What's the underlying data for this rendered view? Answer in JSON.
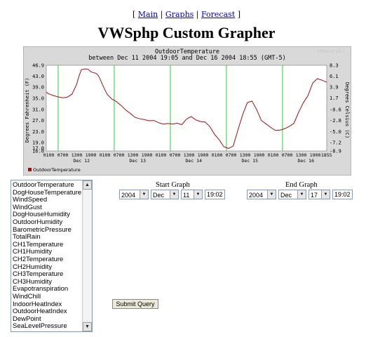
{
  "nav": {
    "open": "[",
    "main": "Main",
    "sep1": "|",
    "graphs": "Graphs",
    "sep2": "|",
    "forecast": "Forecast",
    "close": "]"
  },
  "page_title": "VWSphp Custom Grapher",
  "graph": {
    "title_line1": "OutdoorTemperature",
    "title_line2": "between Dec 11 2004 19:05 and Dec 16 2004 18:55 (GMT-5)",
    "watermark": "VWSphp v0.2",
    "ylabel_left": "Degrees Fahrenheit (F)",
    "ylabel_right": "Degrees Celsius (C)",
    "legend": "OutdoorTemperature",
    "colors": {
      "line": "#9a1111",
      "grid_day": "#2ecc40",
      "bg": "#ffffff",
      "frame": "#d9d9d9"
    }
  },
  "chart_data": {
    "type": "line",
    "title": "OutdoorTemperature between Dec 11 2004 19:05 and Dec 16 2004 18:55 (GMT-5)",
    "xlabel": "",
    "ylabel": "Degrees Fahrenheit (F)",
    "ylabel_right": "Degrees Celsius (C)",
    "ylim": [
      16.0,
      46.9
    ],
    "xlim": [
      0,
      120
    ],
    "y_ticks_left": [
      "46.9",
      "43.0",
      "39.0",
      "35.0",
      "31.0",
      "27.0",
      "23.0",
      "19.0",
      "17.0",
      "16.0"
    ],
    "y_tick_values_left": [
      46.9,
      43.0,
      39.0,
      35.0,
      31.0,
      27.0,
      23.0,
      19.0,
      17.0,
      16.0
    ],
    "y_ticks_right": [
      "8.3",
      "6.1",
      "3.9",
      "1.7",
      "-0.6",
      "-2.8",
      "-5.0",
      "-7.2",
      "-8.9"
    ],
    "y_tick_values_right": [
      8.3,
      6.1,
      3.9,
      1.7,
      -0.6,
      -2.8,
      -5.0,
      -7.2,
      -8.9
    ],
    "x_ticks": [
      {
        "x": 1.08,
        "top": "0100",
        "bottom": ""
      },
      {
        "x": 7.08,
        "top": "0700",
        "bottom": ""
      },
      {
        "x": 13.08,
        "top": "1300",
        "bottom": ""
      },
      {
        "x": 19.08,
        "top": "1900",
        "bottom": ""
      },
      {
        "x": 25.08,
        "top": "0100",
        "bottom": ""
      },
      {
        "x": 31.08,
        "top": "0700",
        "bottom": ""
      },
      {
        "x": 37.08,
        "top": "1300",
        "bottom": ""
      },
      {
        "x": 43.08,
        "top": "1900",
        "bottom": ""
      },
      {
        "x": 49.08,
        "top": "0100",
        "bottom": ""
      },
      {
        "x": 55.08,
        "top": "0700",
        "bottom": ""
      },
      {
        "x": 61.08,
        "top": "1300",
        "bottom": ""
      },
      {
        "x": 67.08,
        "top": "1900",
        "bottom": ""
      },
      {
        "x": 73.08,
        "top": "0100",
        "bottom": ""
      },
      {
        "x": 79.08,
        "top": "0700",
        "bottom": ""
      },
      {
        "x": 85.08,
        "top": "1300",
        "bottom": ""
      },
      {
        "x": 91.08,
        "top": "1900",
        "bottom": ""
      },
      {
        "x": 97.08,
        "top": "0100",
        "bottom": ""
      },
      {
        "x": 103.08,
        "top": "0700",
        "bottom": ""
      },
      {
        "x": 109.08,
        "top": "1300",
        "bottom": ""
      },
      {
        "x": 115.08,
        "top": "1900",
        "bottom": ""
      },
      {
        "x": 119.92,
        "top": "1855",
        "bottom": ""
      }
    ],
    "day_labels": [
      {
        "x": 15.08,
        "label": "Dec 12"
      },
      {
        "x": 39.08,
        "label": "Dec 13"
      },
      {
        "x": 63.08,
        "label": "Dec 14"
      },
      {
        "x": 87.08,
        "label": "Dec 15"
      },
      {
        "x": 111.08,
        "label": "Dec 16"
      }
    ],
    "day_lines_x": [
      5.08,
      29.08,
      53.08,
      77.08,
      101.08
    ],
    "series": [
      {
        "name": "OutdoorTemperature",
        "x": [
          0,
          1,
          3,
          5,
          7,
          9,
          11,
          13,
          14,
          15,
          16,
          17,
          18,
          19,
          20,
          21,
          22,
          23,
          24,
          25,
          26,
          28,
          30,
          32,
          34,
          36,
          38,
          40,
          42,
          44,
          46,
          48,
          50,
          52,
          54,
          56,
          58,
          59,
          60,
          62,
          64,
          66,
          68,
          70,
          72,
          74,
          76,
          78,
          80,
          82,
          84,
          86,
          88,
          90,
          92,
          94,
          96,
          98,
          100,
          102,
          104,
          106,
          108,
          110,
          112,
          114,
          116,
          118,
          120
        ],
        "values": [
          37.2,
          36.6,
          36.0,
          35.5,
          35.2,
          35.4,
          36.5,
          40.0,
          43.0,
          45.3,
          45.5,
          45.6,
          45.4,
          44.6,
          44.3,
          44.1,
          43.5,
          42.0,
          40.0,
          38.2,
          36.5,
          34.8,
          33.8,
          32.4,
          30.8,
          29.5,
          28.1,
          27.6,
          27.3,
          26.9,
          27.0,
          26.2,
          25.7,
          25.9,
          25.7,
          26.0,
          25.5,
          26.5,
          27.5,
          28.4,
          27.2,
          26.6,
          26.4,
          24.8,
          22.0,
          20.0,
          17.5,
          16.9,
          17.8,
          23.5,
          29.0,
          33.4,
          34.0,
          31.0,
          27.0,
          25.8,
          24.5,
          23.4,
          23.5,
          24.0,
          24.9,
          26.0,
          30.0,
          33.4,
          36.0,
          40.5,
          42.1,
          41.5,
          40.8
        ]
      }
    ],
    "grid": "vertical day lines",
    "legend_position": "bottom-left"
  },
  "list": {
    "items": [
      "OutdoorTemperature",
      "DogHouseTemperature",
      "WindSpeed",
      "WindGust",
      "DogHouseHumidity",
      "OutdoorHumidity",
      "BarometricPressure",
      "TotalRain",
      "CH1Temperature",
      "CH1Humidity",
      "CH2Temperature",
      "CH2Humidity",
      "CH3Temperature",
      "CH3Humidity",
      "Evapotranspiration",
      "WindChill",
      "IndoorHeatIndex",
      "OutdoorHeatIndex",
      "DewPoint",
      "SeaLevelPressure"
    ],
    "scroll_up_icon": "arrow-up-icon",
    "scroll_down_icon": "arrow-down-icon"
  },
  "start": {
    "label": "Start Graph",
    "year": "2004",
    "month": "Dec",
    "day": "11",
    "time": "19:02"
  },
  "end": {
    "label": "End Graph",
    "year": "2004",
    "month": "Dec",
    "day": "17",
    "time": "19:02"
  },
  "submit_label": "Submit Query"
}
